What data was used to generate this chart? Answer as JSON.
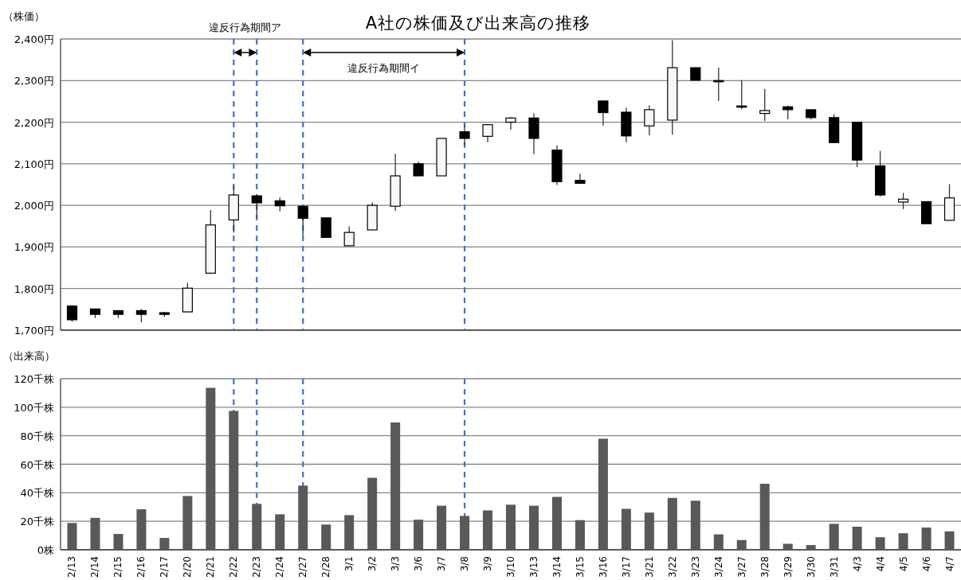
{
  "chart_data": [
    {
      "type": "candlestick",
      "title": "A社の株価及び出来高の推移",
      "ylabel": "（株価）",
      "categories": [
        "2/13",
        "2/14",
        "2/15",
        "2/16",
        "2/17",
        "2/20",
        "2/21",
        "2/22",
        "2/23",
        "2/24",
        "2/27",
        "2/28",
        "3/1",
        "3/2",
        "3/3",
        "3/6",
        "3/7",
        "3/8",
        "3/9",
        "3/10",
        "3/13",
        "3/14",
        "3/15",
        "3/16",
        "3/17",
        "3/21",
        "3/22",
        "3/23",
        "3/24",
        "3/27",
        "3/28",
        "3/29",
        "3/30",
        "3/31",
        "4/3",
        "4/4",
        "4/5",
        "4/6",
        "4/7"
      ],
      "ohlc": [
        [
          1758,
          1760,
          1720,
          1725
        ],
        [
          1751,
          1751,
          1729,
          1738
        ],
        [
          1747,
          1747,
          1729,
          1738
        ],
        [
          1747,
          1751,
          1719,
          1738
        ],
        [
          1742,
          1744,
          1732,
          1738
        ],
        [
          1744,
          1814,
          1743,
          1801
        ],
        [
          1837,
          1989,
          1837,
          1953
        ],
        [
          1965,
          2047,
          1935,
          2025
        ],
        [
          2023,
          2023,
          1970,
          2006
        ],
        [
          2011,
          2019,
          1986,
          1999
        ],
        [
          1998,
          1998,
          1928,
          1969
        ],
        [
          1970,
          1970,
          1923,
          1923
        ],
        [
          1903,
          1949,
          1903,
          1935
        ],
        [
          1941,
          2007,
          1941,
          2000
        ],
        [
          1998,
          2124,
          1987,
          2071
        ],
        [
          2100,
          2105,
          2071,
          2071
        ],
        [
          2071,
          2161,
          2071,
          2161
        ],
        [
          2177,
          2193,
          2145,
          2161
        ],
        [
          2166,
          2194,
          2152,
          2194
        ],
        [
          2200,
          2212,
          2182,
          2210
        ],
        [
          2210,
          2221,
          2123,
          2161
        ],
        [
          2133,
          2144,
          2049,
          2057
        ],
        [
          2060,
          2076,
          2053,
          2053
        ],
        [
          2251,
          2251,
          2192,
          2223
        ],
        [
          2224,
          2235,
          2152,
          2167
        ],
        [
          2191,
          2241,
          2168,
          2230
        ],
        [
          2205,
          2397,
          2170,
          2331
        ],
        [
          2331,
          2331,
          2301,
          2301
        ],
        [
          2300,
          2331,
          2251,
          2298
        ],
        [
          2239,
          2301,
          2231,
          2236
        ],
        [
          2221,
          2280,
          2203,
          2228
        ],
        [
          2237,
          2240,
          2207,
          2230
        ],
        [
          2230,
          2230,
          2207,
          2211
        ],
        [
          2211,
          2219,
          2151,
          2151
        ],
        [
          2200,
          2200,
          2092,
          2109
        ],
        [
          2095,
          2131,
          2021,
          2025
        ],
        [
          2008,
          2030,
          1991,
          2015
        ],
        [
          2009,
          2009,
          1956,
          1956
        ],
        [
          1964,
          2051,
          1964,
          2018
        ]
      ],
      "colors": [
        "#000000",
        "#000000",
        "#000000",
        "#000000",
        "#000000",
        "#f8f8f8",
        "#f8f8f8",
        "#f8f8f8",
        "#000000",
        "#000000",
        "#000000",
        "#000000",
        "#f8f8f8",
        "#f8f8f8",
        "#f8f8f8",
        "#000000",
        "#f8f8f8",
        "#000000",
        "#f8f8f8",
        "#f8f8f8",
        "#000000",
        "#000000",
        "#000000",
        "#000000",
        "#000000",
        "#f8f8f8",
        "#f8f8f8",
        "#000000",
        "#000000",
        "#000000",
        "#f8f8f8",
        "#000000",
        "#000000",
        "#000000",
        "#000000",
        "#000000",
        "#f8f8f8",
        "#000000",
        "#f8f8f8"
      ],
      "ylim": [
        1700,
        2400
      ],
      "yticks": [
        {
          "value": 1700,
          "label": "1,700円"
        },
        {
          "value": 1800,
          "label": "1,800円"
        },
        {
          "value": 1900,
          "label": "1,900円"
        },
        {
          "value": 2000,
          "label": "2,000円"
        },
        {
          "value": 2100,
          "label": "2,100円"
        },
        {
          "value": 2200,
          "label": "2,200円"
        },
        {
          "value": 2300,
          "label": "2,300円"
        },
        {
          "value": 2400,
          "label": "2,400円"
        }
      ],
      "grid": "y",
      "tick_labels": "y",
      "annotations": [
        "違反行為期間ア",
        "違反行為期間イ"
      ],
      "ref_lines": [
        {
          "axis": "x",
          "value": "2/22",
          "color": "#4472c4",
          "line_style": "dashed"
        },
        {
          "axis": "x",
          "value": "2/23",
          "color": "#4472c4",
          "line_style": "dashed"
        },
        {
          "axis": "x",
          "value": "2/27",
          "color": "#4472c4",
          "line_style": "dashed"
        },
        {
          "axis": "x",
          "value": "3/8",
          "color": "#4472c4",
          "line_style": "dashed"
        }
      ]
    },
    {
      "type": "bar",
      "ylabel": "（出来高）",
      "categories": [
        "2/13",
        "2/14",
        "2/15",
        "2/16",
        "2/17",
        "2/20",
        "2/21",
        "2/22",
        "2/23",
        "2/24",
        "2/27",
        "2/28",
        "3/1",
        "3/2",
        "3/3",
        "3/6",
        "3/7",
        "3/8",
        "3/9",
        "3/10",
        "3/13",
        "3/14",
        "3/15",
        "3/16",
        "3/17",
        "3/21",
        "3/22",
        "3/23",
        "3/24",
        "3/27",
        "3/28",
        "3/29",
        "3/30",
        "3/31",
        "4/3",
        "4/4",
        "4/5",
        "4/6",
        "4/7"
      ],
      "values": [
        18.8,
        22.4,
        11.1,
        28.4,
        8.3,
        37.7,
        113.6,
        97.4,
        32.2,
        24.9,
        45,
        17.7,
        24.3,
        50.5,
        89.3,
        21.1,
        30.9,
        23.7,
        27.6,
        31.6,
        30.9,
        37.1,
        20.8,
        77.9,
        28.7,
        26.1,
        36.4,
        34.4,
        10.8,
        6.8,
        46.3,
        4.2,
        3.3,
        18.2,
        16.2,
        8.8,
        11.6,
        15.6,
        12.9
      ],
      "color": "#595959",
      "ylim": [
        0,
        120
      ],
      "yticks": [
        {
          "value": 0,
          "label": "0株"
        },
        {
          "value": 20,
          "label": "20千株"
        },
        {
          "value": 40,
          "label": "40千株"
        },
        {
          "value": 60,
          "label": "60千株"
        },
        {
          "value": 80,
          "label": "80千株"
        },
        {
          "value": 100,
          "label": "100千株"
        },
        {
          "value": 120,
          "label": "120千株"
        }
      ],
      "grid": "y",
      "ref_lines": [
        {
          "axis": "x",
          "value": "2/22",
          "color": "#4472c4",
          "line_style": "dashed"
        },
        {
          "axis": "x",
          "value": "2/23",
          "color": "#4472c4",
          "line_style": "dashed"
        },
        {
          "axis": "x",
          "value": "2/27",
          "color": "#4472c4",
          "line_style": "dashed"
        },
        {
          "axis": "x",
          "value": "3/8",
          "color": "#4472c4",
          "line_style": "dashed"
        }
      ]
    }
  ]
}
